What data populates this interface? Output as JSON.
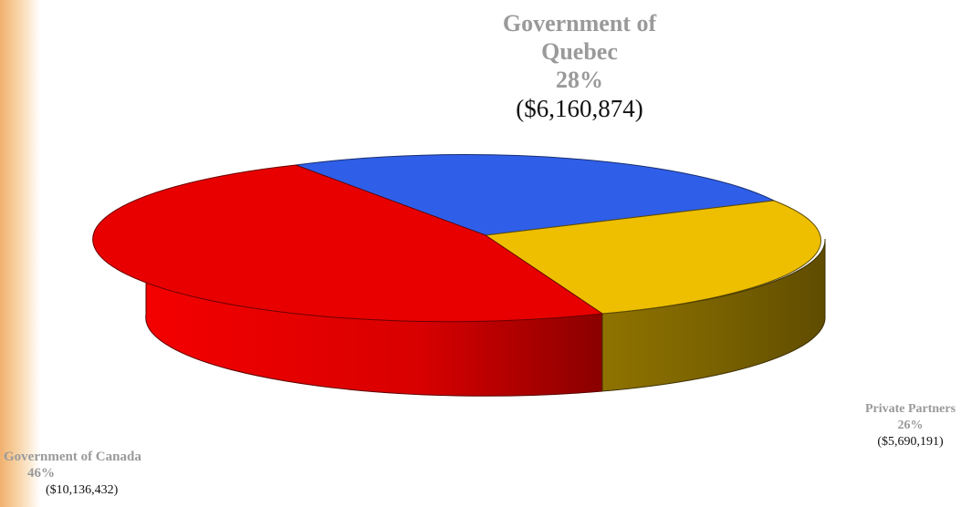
{
  "chart_data": {
    "type": "pie",
    "style": "3d",
    "title": "",
    "slices": [
      {
        "label": "Government of Canada",
        "percent": "46%",
        "amount": "($10,136,432)",
        "value": 10136432,
        "color": "#e80000",
        "side_color": "#9a0000"
      },
      {
        "label": "Government of Quebec",
        "percent": "28%",
        "amount": "($6,160,874)",
        "value": 6160874,
        "color": "#2f5fe8",
        "side_color": "#1d3c99"
      },
      {
        "label": "Private Partners",
        "percent": "26%",
        "amount": "($5,690,191)",
        "value": 5690191,
        "color": "#eebf00",
        "side_color": "#7a6200"
      }
    ],
    "legend": "none"
  },
  "labels": {
    "quebec": {
      "name_line1": "Government of",
      "name_line2": "Quebec",
      "percent": "28%",
      "amount": "($6,160,874)"
    },
    "private": {
      "name": "Private Partners",
      "percent": "26%",
      "amount": "($5,690,191)"
    },
    "canada": {
      "name": "Government of Canada",
      "percent": "46%",
      "amount": "($10,136,432)"
    }
  },
  "colors": {
    "label_grey": "#9a9a9a",
    "label_dark": "#111111"
  }
}
